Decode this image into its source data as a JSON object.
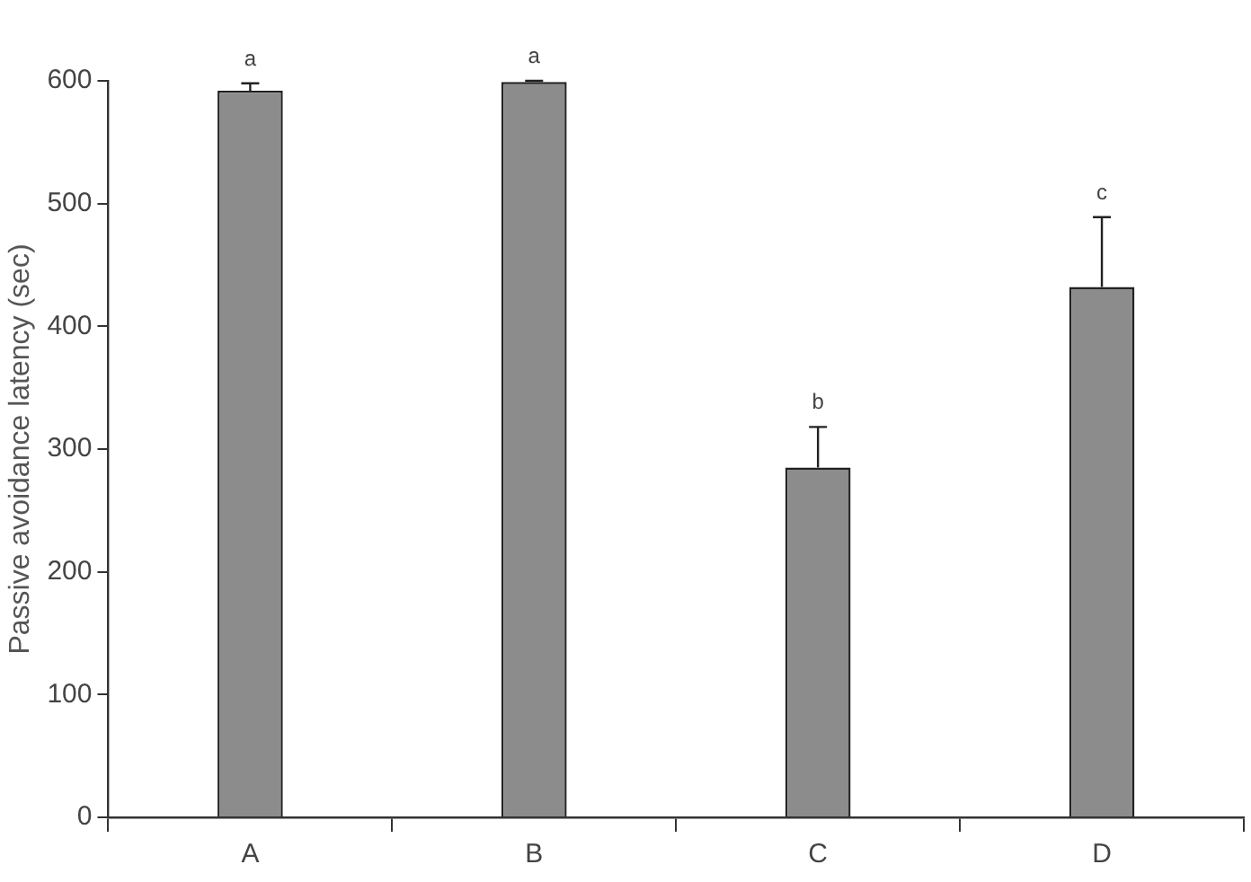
{
  "chart_data": {
    "type": "bar",
    "ylabel": "Passive avoidance latency (sec)",
    "categories": [
      "A",
      "B",
      "C",
      "D"
    ],
    "values": [
      592,
      599,
      285,
      432
    ],
    "errors": [
      [
        592,
        598
      ],
      [
        599,
        600
      ],
      [
        285,
        318
      ],
      [
        432,
        489
      ]
    ],
    "color": "#8c8c8c",
    "ylim": [
      0,
      600
    ],
    "yticks": [
      0,
      100,
      200,
      300,
      400,
      500,
      600
    ],
    "grid": false,
    "legend": false,
    "annotations": [
      {
        "text": "a",
        "x": "A",
        "y": 598
      },
      {
        "text": "a",
        "x": "B",
        "y": 600
      },
      {
        "text": "b",
        "x": "C",
        "y": 318
      },
      {
        "text": "c",
        "x": "D",
        "y": 489
      }
    ]
  }
}
